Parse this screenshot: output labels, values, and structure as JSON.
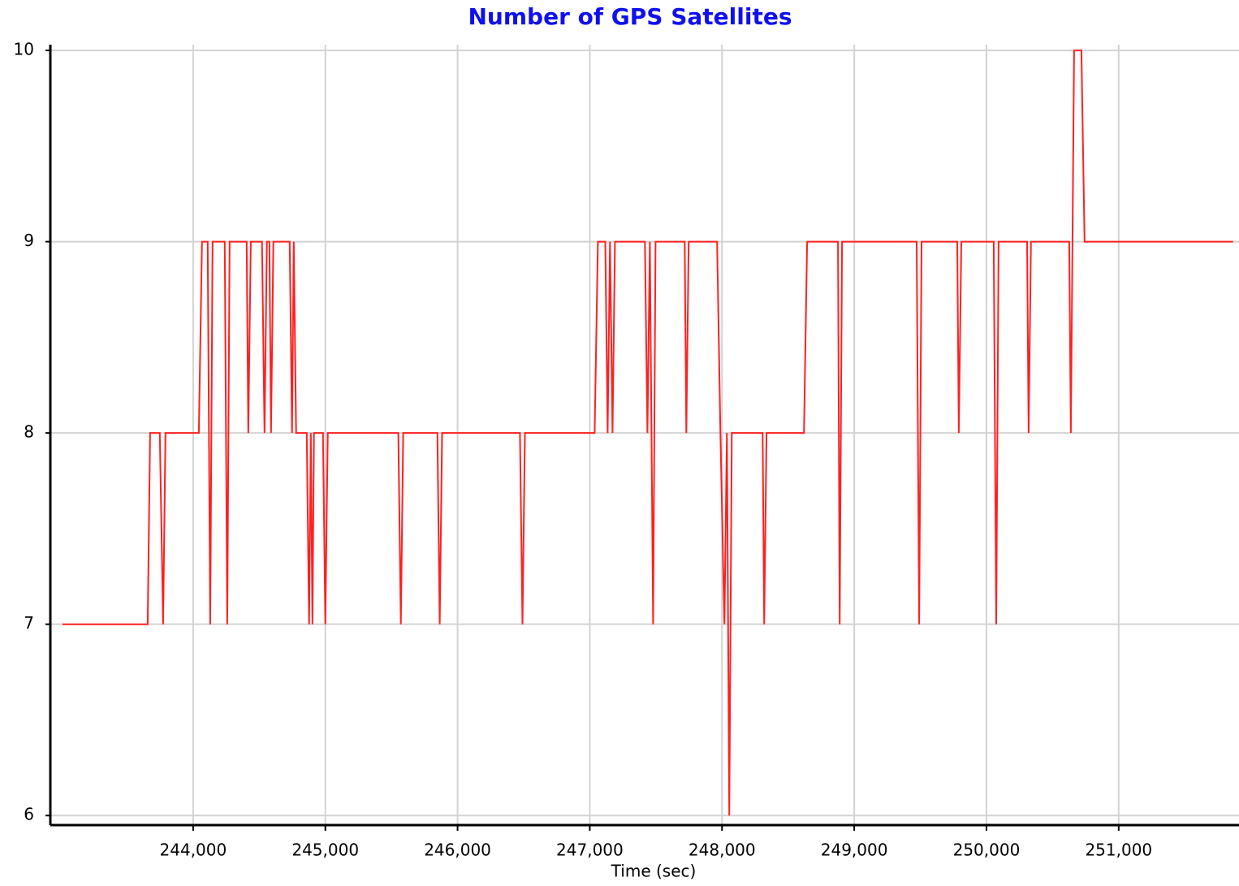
{
  "chart_data": {
    "type": "line",
    "title": "Number of GPS Satellites",
    "x_label": "Time (sec)",
    "x": [
      243012,
      243656,
      243675,
      243748,
      243773,
      243791,
      244043,
      244067,
      244110,
      244129,
      244147,
      244239,
      244258,
      244276,
      244405,
      244417,
      244436,
      244521,
      244540,
      244558,
      244577,
      244589,
      244607,
      244730,
      244748,
      244761,
      244779,
      244859,
      244877,
      244890,
      244902,
      244914,
      244982,
      245000,
      245018,
      245552,
      245571,
      245589,
      245847,
      245865,
      245883,
      246472,
      246491,
      246509,
      247037,
      247061,
      247117,
      247135,
      247153,
      247172,
      247190,
      247417,
      247436,
      247454,
      247479,
      247497,
      247718,
      247730,
      247748,
      247963,
      247988,
      248018,
      248037,
      248055,
      248074,
      248307,
      248319,
      248337,
      248620,
      248644,
      248877,
      248890,
      248908,
      249472,
      249491,
      249509,
      249779,
      249791,
      249810,
      250055,
      250074,
      250092,
      250307,
      250319,
      250337,
      250626,
      250638,
      250663,
      250718,
      250742,
      251865
    ],
    "series": [
      {
        "name": "GPS Satellites",
        "color": "#ff2020",
        "values": [
          7,
          7,
          8,
          8,
          7,
          8,
          8,
          9,
          9,
          7,
          9,
          9,
          7,
          9,
          9,
          8,
          9,
          9,
          8,
          9,
          9,
          8,
          9,
          9,
          8,
          9,
          8,
          8,
          7,
          8,
          7,
          8,
          8,
          7,
          8,
          8,
          7,
          8,
          8,
          7,
          8,
          8,
          7,
          8,
          8,
          9,
          9,
          8,
          9,
          8,
          9,
          9,
          8,
          9,
          7,
          9,
          9,
          8,
          9,
          9,
          8,
          7,
          8,
          6,
          8,
          8,
          7,
          8,
          8,
          9,
          9,
          7,
          9,
          9,
          7,
          9,
          9,
          8,
          9,
          9,
          7,
          9,
          9,
          8,
          9,
          9,
          8,
          10,
          10,
          9,
          9
        ]
      }
    ],
    "xlim": [
      242920,
      251910
    ],
    "ylim": [
      5.95,
      10.03
    ],
    "xticks": [
      {
        "value": 244000,
        "label": "244,000"
      },
      {
        "value": 245000,
        "label": "245,000"
      },
      {
        "value": 246000,
        "label": "246,000"
      },
      {
        "value": 247000,
        "label": "247,000"
      },
      {
        "value": 248000,
        "label": "248,000"
      },
      {
        "value": 249000,
        "label": "249,000"
      },
      {
        "value": 250000,
        "label": "250,000"
      },
      {
        "value": 251000,
        "label": "251,000"
      }
    ],
    "yticks": [
      6,
      7,
      8,
      9,
      10
    ],
    "grid": true
  }
}
